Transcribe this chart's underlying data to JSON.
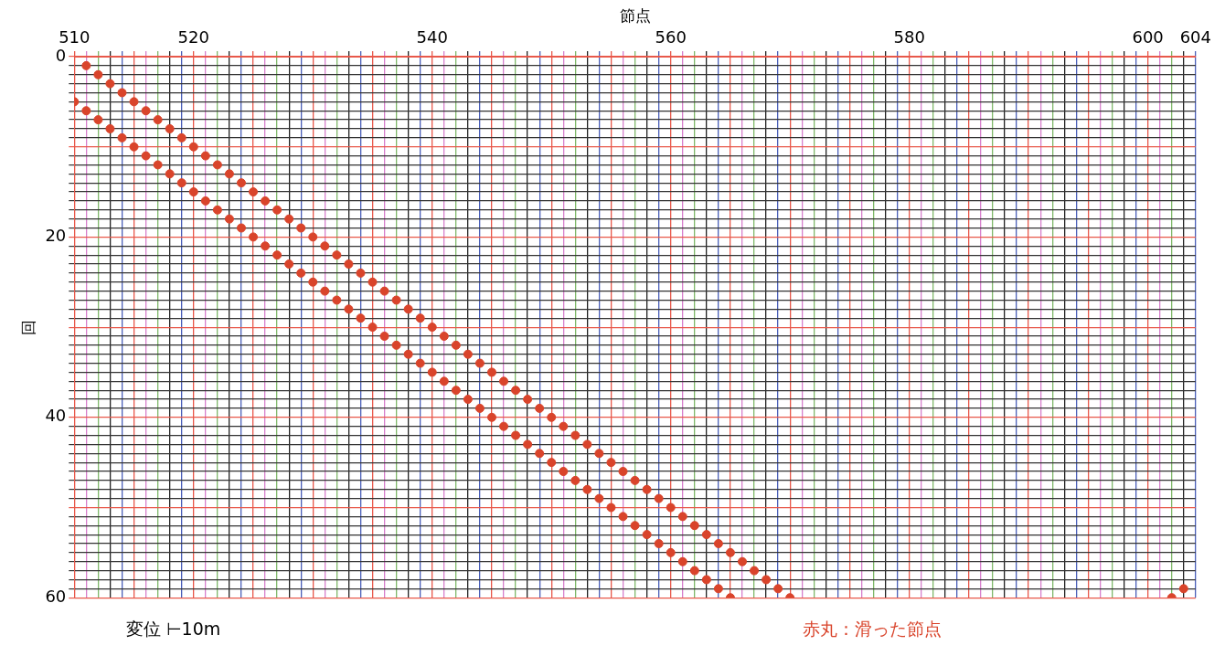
{
  "chart_data": {
    "type": "scatter",
    "xlabel": "節点",
    "ylabel": "回",
    "xlim": [
      510,
      604
    ],
    "ylim": [
      60,
      0
    ],
    "xticks": [
      510,
      {
        "value": 511,
        "label": null
      },
      {
        "value": 512,
        "label": null
      },
      {
        "value": 513,
        "label": null
      },
      {
        "value": 514,
        "label": null
      },
      {
        "value": 515,
        "label": null
      },
      {
        "value": 516,
        "label": null
      },
      {
        "value": 517,
        "label": null
      },
      {
        "value": 518,
        "label": null
      },
      {
        "value": 519,
        "label": null
      },
      520,
      {
        "value": 521,
        "label": null
      },
      {
        "value": 522,
        "label": null
      },
      {
        "value": 523,
        "label": null
      },
      {
        "value": 524,
        "label": null
      },
      {
        "value": 525,
        "label": null
      },
      {
        "value": 526,
        "label": null
      },
      {
        "value": 527,
        "label": null
      },
      {
        "value": 528,
        "label": null
      },
      {
        "value": 529,
        "label": null
      },
      {
        "value": 530,
        "label": null
      },
      {
        "value": 531,
        "label": null
      },
      {
        "value": 532,
        "label": null
      },
      {
        "value": 533,
        "label": null
      },
      {
        "value": 534,
        "label": null
      },
      {
        "value": 535,
        "label": null
      },
      {
        "value": 536,
        "label": null
      },
      {
        "value": 537,
        "label": null
      },
      {
        "value": 538,
        "label": null
      },
      {
        "value": 539,
        "label": null
      },
      540,
      {
        "value": 541,
        "label": null
      },
      {
        "value": 542,
        "label": null
      },
      {
        "value": 543,
        "label": null
      },
      {
        "value": 544,
        "label": null
      },
      {
        "value": 545,
        "label": null
      },
      {
        "value": 546,
        "label": null
      },
      {
        "value": 547,
        "label": null
      },
      {
        "value": 548,
        "label": null
      },
      {
        "value": 549,
        "label": null
      },
      {
        "value": 550,
        "label": null
      },
      {
        "value": 551,
        "label": null
      },
      {
        "value": 552,
        "label": null
      },
      {
        "value": 553,
        "label": null
      },
      {
        "value": 554,
        "label": null
      },
      {
        "value": 555,
        "label": null
      },
      {
        "value": 556,
        "label": null
      },
      {
        "value": 557,
        "label": null
      },
      {
        "value": 558,
        "label": null
      },
      {
        "value": 559,
        "label": null
      },
      560,
      {
        "value": 561,
        "label": null
      },
      {
        "value": 562,
        "label": null
      },
      {
        "value": 563,
        "label": null
      },
      {
        "value": 564,
        "label": null
      },
      {
        "value": 565,
        "label": null
      },
      {
        "value": 566,
        "label": null
      },
      {
        "value": 567,
        "label": null
      },
      {
        "value": 568,
        "label": null
      },
      {
        "value": 569,
        "label": null
      },
      {
        "value": 570,
        "label": null
      },
      {
        "value": 571,
        "label": null
      },
      {
        "value": 572,
        "label": null
      },
      {
        "value": 573,
        "label": null
      },
      {
        "value": 574,
        "label": null
      },
      {
        "value": 575,
        "label": null
      },
      {
        "value": 576,
        "label": null
      },
      {
        "value": 577,
        "label": null
      },
      {
        "value": 578,
        "label": null
      },
      {
        "value": 579,
        "label": null
      },
      580,
      {
        "value": 581,
        "label": null
      },
      {
        "value": 582,
        "label": null
      },
      {
        "value": 583,
        "label": null
      },
      {
        "value": 584,
        "label": null
      },
      {
        "value": 585,
        "label": null
      },
      {
        "value": 586,
        "label": null
      },
      {
        "value": 587,
        "label": null
      },
      {
        "value": 588,
        "label": null
      },
      {
        "value": 589,
        "label": null
      },
      {
        "value": 590,
        "label": null
      },
      {
        "value": 591,
        "label": null
      },
      {
        "value": 592,
        "label": null
      },
      {
        "value": 593,
        "label": null
      },
      {
        "value": 594,
        "label": null
      },
      {
        "value": 595,
        "label": null
      },
      {
        "value": 596,
        "label": null
      },
      {
        "value": 597,
        "label": null
      },
      {
        "value": 598,
        "label": null
      },
      {
        "value": 599,
        "label": null
      },
      600,
      {
        "value": 601,
        "label": null
      },
      {
        "value": 602,
        "label": null
      },
      {
        "value": 603,
        "label": null
      },
      604
    ],
    "yticks": [
      0,
      {
        "value": 1,
        "label": null
      },
      {
        "value": 2,
        "label": null
      },
      {
        "value": 3,
        "label": null
      },
      {
        "value": 4,
        "label": null
      },
      {
        "value": 5,
        "label": null
      },
      {
        "value": 6,
        "label": null
      },
      {
        "value": 7,
        "label": null
      },
      {
        "value": 8,
        "label": null
      },
      {
        "value": 9,
        "label": null
      },
      {
        "value": 10,
        "label": null
      },
      {
        "value": 11,
        "label": null
      },
      {
        "value": 12,
        "label": null
      },
      {
        "value": 13,
        "label": null
      },
      {
        "value": 14,
        "label": null
      },
      {
        "value": 15,
        "label": null
      },
      {
        "value": 16,
        "label": null
      },
      {
        "value": 17,
        "label": null
      },
      {
        "value": 18,
        "label": null
      },
      {
        "value": 19,
        "label": null
      },
      20,
      {
        "value": 21,
        "label": null
      },
      {
        "value": 22,
        "label": null
      },
      {
        "value": 23,
        "label": null
      },
      {
        "value": 24,
        "label": null
      },
      {
        "value": 25,
        "label": null
      },
      {
        "value": 26,
        "label": null
      },
      {
        "value": 27,
        "label": null
      },
      {
        "value": 28,
        "label": null
      },
      {
        "value": 29,
        "label": null
      },
      {
        "value": 30,
        "label": null
      },
      {
        "value": 31,
        "label": null
      },
      {
        "value": 32,
        "label": null
      },
      {
        "value": 33,
        "label": null
      },
      {
        "value": 34,
        "label": null
      },
      {
        "value": 35,
        "label": null
      },
      {
        "value": 36,
        "label": null
      },
      {
        "value": 37,
        "label": null
      },
      {
        "value": 38,
        "label": null
      },
      {
        "value": 39,
        "label": null
      },
      40,
      {
        "value": 41,
        "label": null
      },
      {
        "value": 42,
        "label": null
      },
      {
        "value": 43,
        "label": null
      },
      {
        "value": 44,
        "label": null
      },
      {
        "value": 45,
        "label": null
      },
      {
        "value": 46,
        "label": null
      },
      {
        "value": 47,
        "label": null
      },
      {
        "value": 48,
        "label": null
      },
      {
        "value": 49,
        "label": null
      },
      {
        "value": 50,
        "label": null
      },
      {
        "value": 51,
        "label": null
      },
      {
        "value": 52,
        "label": null
      },
      {
        "value": 53,
        "label": null
      },
      {
        "value": 54,
        "label": null
      },
      {
        "value": 55,
        "label": null
      },
      {
        "value": 56,
        "label": null
      },
      {
        "value": 57,
        "label": null
      },
      {
        "value": 58,
        "label": null
      },
      {
        "value": 59,
        "label": null
      },
      60
    ],
    "grid": true,
    "legend": false,
    "marker": "circle",
    "series": [
      {
        "color": "#d9442b",
        "x": [
          511,
          512,
          513,
          514,
          515,
          516,
          517,
          518,
          519,
          520,
          521,
          522,
          523,
          524,
          525,
          526,
          527,
          528,
          529,
          530,
          531,
          532,
          533,
          534,
          535,
          536,
          537,
          538,
          539,
          540,
          541,
          542,
          543,
          544,
          545,
          546,
          547,
          548,
          549,
          550,
          551,
          552,
          553,
          554,
          555,
          556,
          557,
          558,
          559,
          560,
          561,
          562,
          563,
          564,
          565,
          566,
          567,
          568,
          569,
          570
        ],
        "values": [
          1,
          2,
          3,
          4,
          5,
          6,
          7,
          8,
          9,
          10,
          11,
          12,
          13,
          14,
          15,
          16,
          17,
          18,
          19,
          20,
          21,
          22,
          23,
          24,
          25,
          26,
          27,
          28,
          29,
          30,
          31,
          32,
          33,
          34,
          35,
          36,
          37,
          38,
          39,
          40,
          41,
          42,
          43,
          44,
          45,
          46,
          47,
          48,
          49,
          50,
          51,
          52,
          53,
          54,
          55,
          56,
          57,
          58,
          59,
          60
        ]
      },
      {
        "color": "#d9442b",
        "x": [
          510,
          511,
          512,
          513,
          514,
          515,
          516,
          517,
          518,
          519,
          520,
          521,
          522,
          523,
          524,
          525,
          526,
          527,
          528,
          529,
          530,
          531,
          532,
          533,
          534,
          535,
          536,
          537,
          538,
          539,
          540,
          541,
          542,
          543,
          544,
          545,
          546,
          547,
          548,
          549,
          550,
          551,
          552,
          553,
          554,
          555,
          556,
          557,
          558,
          559,
          560,
          561,
          562,
          563,
          564,
          565
        ],
        "values": [
          5,
          6,
          7,
          8,
          9,
          10,
          11,
          12,
          13,
          14,
          15,
          16,
          17,
          18,
          19,
          20,
          21,
          22,
          23,
          24,
          25,
          26,
          27,
          28,
          29,
          30,
          31,
          32,
          33,
          34,
          35,
          36,
          37,
          38,
          39,
          40,
          41,
          42,
          43,
          44,
          45,
          46,
          47,
          48,
          49,
          50,
          51,
          52,
          53,
          54,
          55,
          56,
          57,
          58,
          59,
          60
        ]
      },
      {
        "color": "#d9442b",
        "x": [
          603,
          602
        ],
        "values": [
          59,
          60
        ]
      }
    ],
    "annotations": [
      "変位 ⊢10m",
      "赤丸：滑った節点"
    ]
  }
}
